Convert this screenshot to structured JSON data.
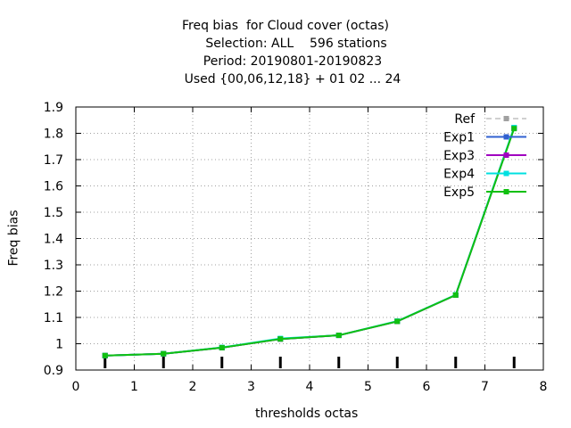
{
  "chart_data": {
    "type": "line",
    "title_lines": [
      "Freq bias  for Cloud cover (octas)",
      "Selection: ALL    596 stations",
      "Period: 20190801-20190823",
      "Used {00,06,12,18} + 01 02 ... 24"
    ],
    "xlabel": "thresholds octas",
    "ylabel": "Freq bias",
    "xlim": [
      0,
      8
    ],
    "ylim": [
      0.9,
      1.9
    ],
    "xticks": [
      "0",
      "1",
      "2",
      "3",
      "4",
      "5",
      "6",
      "7",
      "8"
    ],
    "yticks": [
      "0.9",
      "1",
      "1.1",
      "1.2",
      "1.3",
      "1.4",
      "1.5",
      "1.6",
      "1.7",
      "1.8",
      "1.9"
    ],
    "grid": true,
    "legend_position": "top-right",
    "x": [
      0.5,
      1.5,
      2.5,
      3.5,
      4.5,
      5.5,
      6.5,
      7.5
    ],
    "series": [
      {
        "name": "Ref",
        "color": "#a0a0a0",
        "dashed": true,
        "values": [
          1,
          1,
          1,
          1,
          1,
          1,
          1,
          1
        ],
        "visible_points": false
      },
      {
        "name": "Exp1",
        "color": "#3060d0",
        "dashed": false,
        "values": [
          0.955,
          0.962,
          0.985,
          1.018,
          1.032,
          1.085,
          1.185,
          1.82
        ]
      },
      {
        "name": "Exp3",
        "color": "#a000c0",
        "dashed": false,
        "values": [
          0.955,
          0.962,
          0.985,
          1.018,
          1.032,
          1.085,
          1.185,
          1.82
        ]
      },
      {
        "name": "Exp4",
        "color": "#00e0e0",
        "dashed": false,
        "values": [
          0.955,
          0.962,
          0.986,
          1.02,
          1.032,
          1.086,
          1.186,
          1.822
        ]
      },
      {
        "name": "Exp5",
        "color": "#10c010",
        "dashed": false,
        "values": [
          0.955,
          0.962,
          0.985,
          1.018,
          1.032,
          1.085,
          1.185,
          1.818
        ]
      }
    ]
  }
}
